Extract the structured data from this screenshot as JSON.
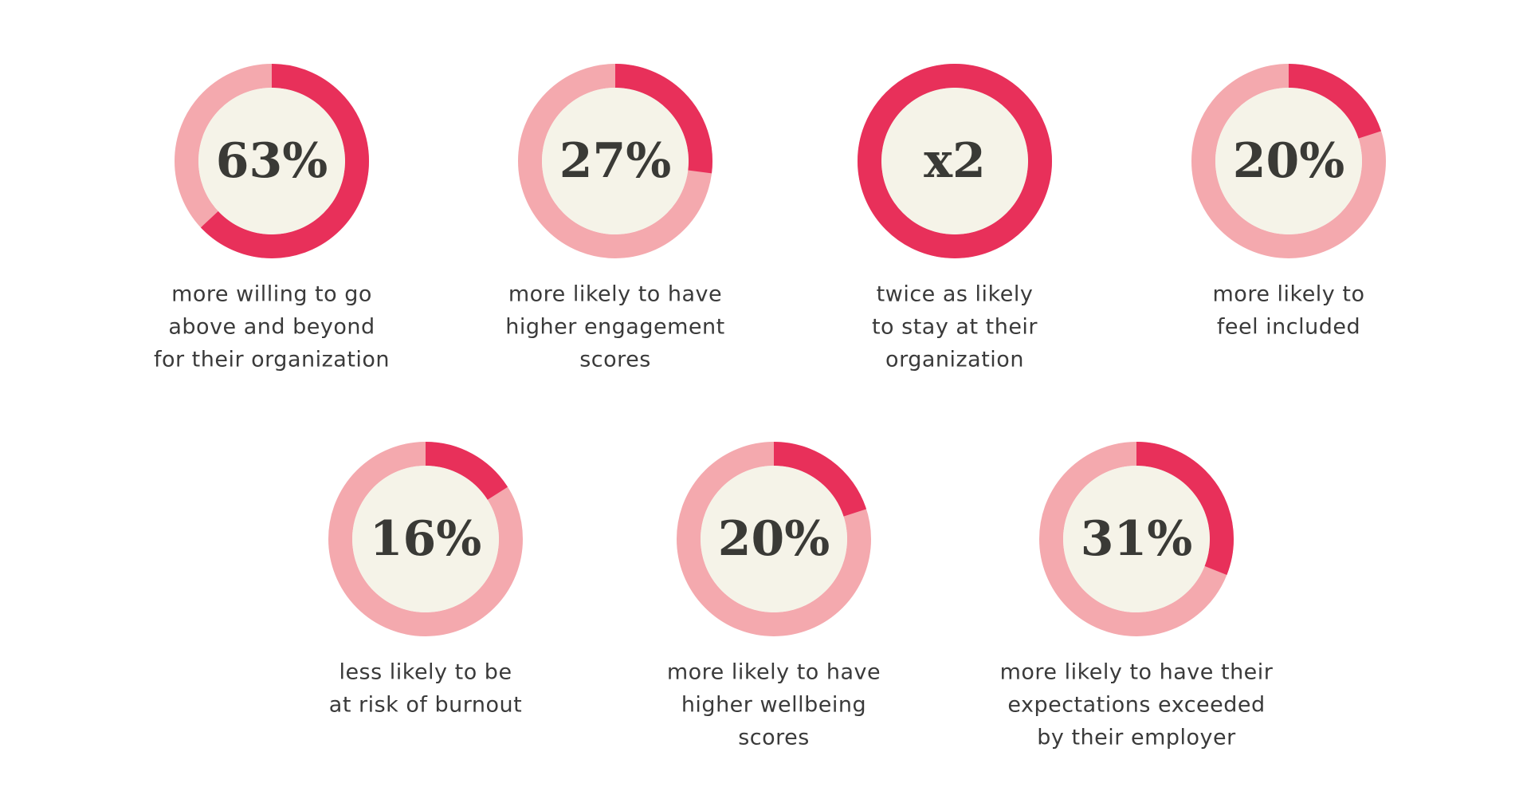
{
  "chart_data": [
    {
      "type": "donut",
      "value": 63,
      "value_label": "63%",
      "caption": [
        "more willing to go",
        "above and beyond",
        "for their organization"
      ],
      "color": "#e8305a",
      "track_color": "#f4a9ae",
      "center_color": "#f5f3e8"
    },
    {
      "type": "donut",
      "value": 27,
      "value_label": "27%",
      "caption": [
        "more likely to have",
        "higher engagement",
        "scores"
      ],
      "color": "#e8305a",
      "track_color": "#f4a9ae",
      "center_color": "#f5f3e8"
    },
    {
      "type": "donut",
      "value": 100,
      "value_label": "x2",
      "caption": [
        "twice as likely",
        "to stay at their",
        "organization"
      ],
      "color": "#e8305a",
      "track_color": "#f4a9ae",
      "center_color": "#f5f3e8"
    },
    {
      "type": "donut",
      "value": 20,
      "value_label": "20%",
      "caption": [
        "more likely to",
        "feel included"
      ],
      "color": "#e8305a",
      "track_color": "#f4a9ae",
      "center_color": "#f5f3e8"
    },
    {
      "type": "donut",
      "value": 16,
      "value_label": "16%",
      "caption": [
        "less likely to be",
        "at risk of burnout"
      ],
      "color": "#e8305a",
      "track_color": "#f4a9ae",
      "center_color": "#f5f3e8"
    },
    {
      "type": "donut",
      "value": 20,
      "value_label": "20%",
      "caption": [
        "more likely to have",
        "higher wellbeing",
        "scores"
      ],
      "color": "#e8305a",
      "track_color": "#f4a9ae",
      "center_color": "#f5f3e8"
    },
    {
      "type": "donut",
      "value": 31,
      "value_label": "31%",
      "caption": [
        "more likely to have their",
        "expectations exceeded",
        "by their employer"
      ],
      "color": "#e8305a",
      "track_color": "#f4a9ae",
      "center_color": "#f5f3e8"
    }
  ]
}
